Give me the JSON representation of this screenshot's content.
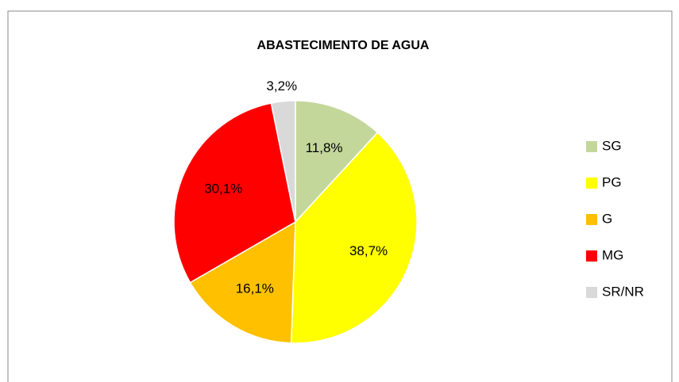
{
  "chart_data": {
    "type": "pie",
    "title": "ABASTECIMENTO DE AGUA",
    "categories": [
      "SG",
      "PG",
      "G",
      "MG",
      "SR/NR"
    ],
    "values": [
      11.8,
      38.7,
      16.1,
      30.1,
      3.2
    ],
    "value_labels": [
      "11,8%",
      "38,7%",
      "16,1%",
      "30,1%",
      "3,2%"
    ],
    "colors": [
      "#c4d79b",
      "#ffff00",
      "#ffc000",
      "#ff0000",
      "#d9d9d9"
    ],
    "legend": "right"
  }
}
